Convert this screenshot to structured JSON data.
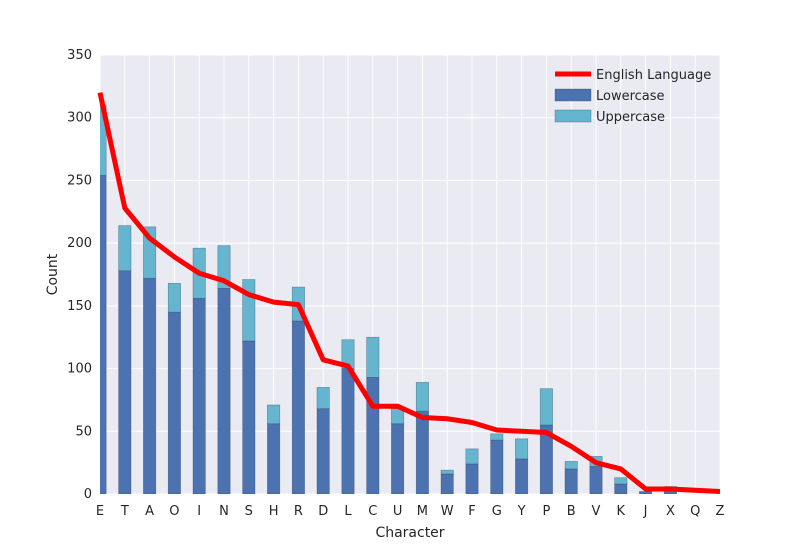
{
  "chart_data": {
    "type": "bar",
    "stacked": true,
    "title": "",
    "xlabel": "Character",
    "ylabel": "Count",
    "ylim": [
      0,
      350
    ],
    "yticks": [
      0,
      50,
      100,
      150,
      200,
      250,
      300,
      350
    ],
    "grid": true,
    "legend_position": "top-right",
    "categories": [
      "E",
      "T",
      "A",
      "O",
      "I",
      "N",
      "S",
      "H",
      "R",
      "D",
      "L",
      "C",
      "U",
      "M",
      "W",
      "F",
      "G",
      "Y",
      "P",
      "B",
      "V",
      "K",
      "J",
      "X",
      "Q",
      "Z"
    ],
    "series": [
      {
        "name": "Lowercase",
        "kind": "bar",
        "color": "#4c72b0",
        "values": [
          254,
          178,
          172,
          145,
          156,
          164,
          122,
          56,
          138,
          68,
          100,
          93,
          56,
          66,
          16,
          24,
          43,
          28,
          55,
          20,
          22,
          8,
          2,
          4,
          0,
          0
        ]
      },
      {
        "name": "Uppercase",
        "kind": "bar",
        "color": "#64b5cd",
        "values": [
          56,
          36,
          41,
          23,
          40,
          34,
          49,
          15,
          27,
          17,
          23,
          32,
          12,
          23,
          3,
          12,
          5,
          16,
          29,
          6,
          8,
          5,
          0,
          2,
          0,
          0
        ]
      },
      {
        "name": "English Language",
        "kind": "line",
        "color": "#ff0000",
        "values": [
          320,
          228,
          204,
          189,
          176,
          170,
          159,
          153,
          151,
          107,
          102,
          70,
          70,
          61,
          60,
          57,
          51,
          50,
          49,
          38,
          25,
          20,
          4,
          4,
          3,
          2
        ]
      }
    ],
    "legend": [
      {
        "label": "English Language",
        "kind": "line"
      },
      {
        "label": "Lowercase",
        "kind": "bar"
      },
      {
        "label": "Uppercase",
        "kind": "bar"
      }
    ]
  }
}
